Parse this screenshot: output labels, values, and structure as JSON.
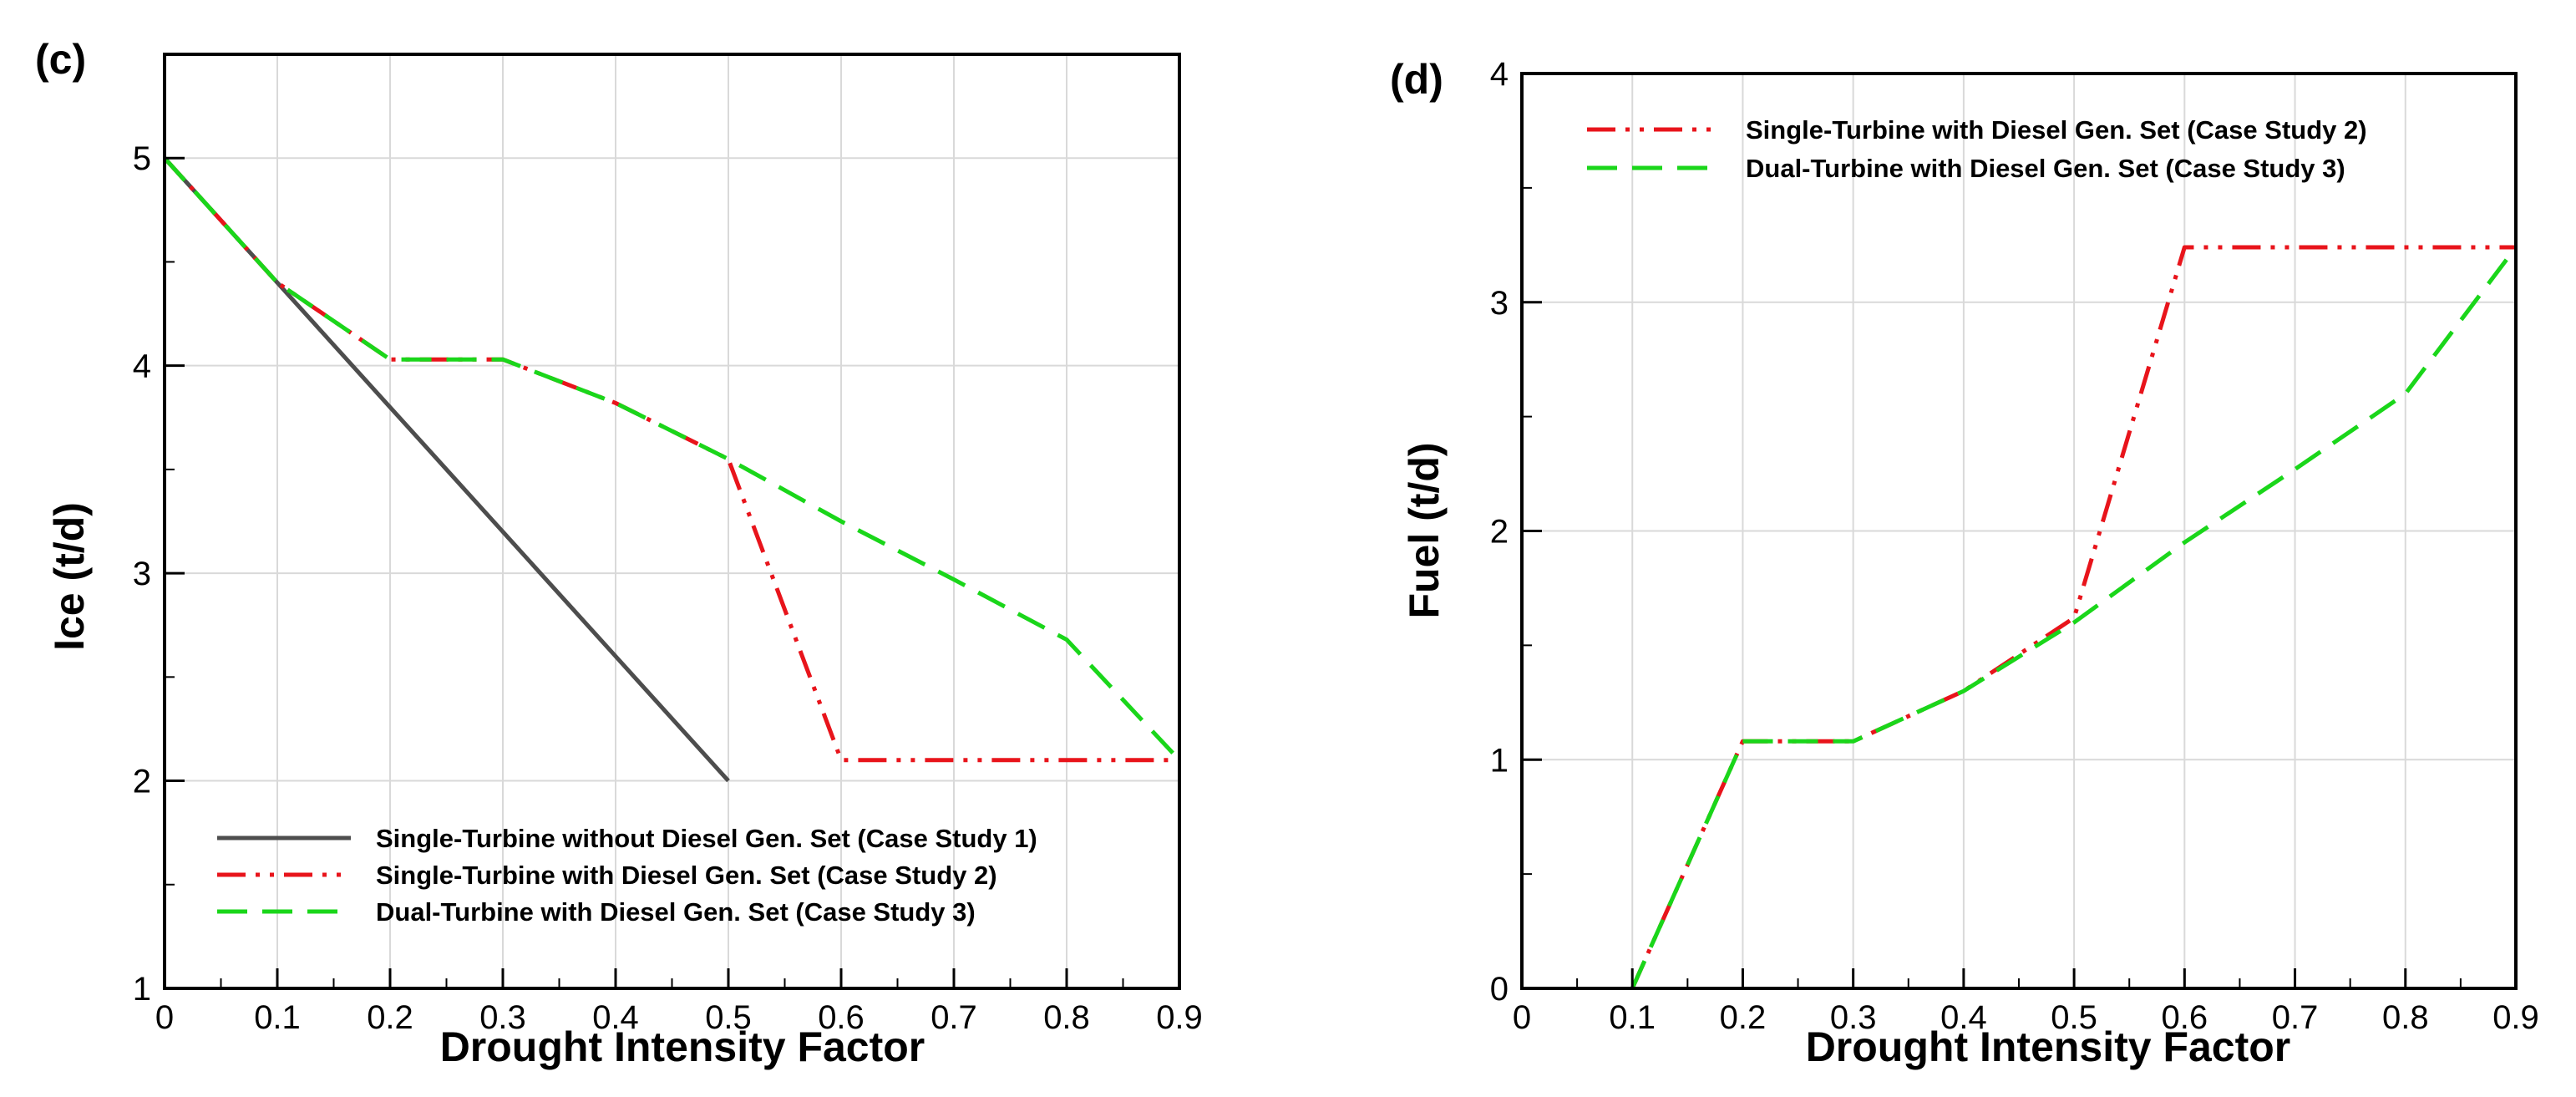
{
  "chart_data": [
    {
      "type": "line",
      "panel_label": "(c)",
      "xlabel": "Drought Intensity Factor",
      "ylabel": "Ice (t/d)",
      "xlim": [
        0,
        0.9
      ],
      "ylim": [
        1,
        5.5
      ],
      "xticks": [
        0,
        0.1,
        0.2,
        0.3,
        0.4,
        0.5,
        0.6,
        0.7,
        0.8,
        0.9
      ],
      "xtick_labels": [
        "0",
        "0.1",
        "0.2",
        "0.3",
        "0.4",
        "0.5",
        "0.6",
        "0.7",
        "0.8",
        "0.9"
      ],
      "yticks": [
        1,
        2,
        3,
        4,
        5
      ],
      "ytick_labels": [
        "1",
        "2",
        "3",
        "4",
        "5"
      ],
      "grid": true,
      "legend_position": "bottom-left",
      "series": [
        {
          "name": "Single-Turbine without Diesel Gen. Set  (Case Study 1)",
          "color": "#4d4d4d",
          "dash": "solid",
          "x": [
            0,
            0.1,
            0.2,
            0.3,
            0.4,
            0.5
          ],
          "y": [
            5.0,
            4.4,
            3.8,
            3.2,
            2.6,
            2.0
          ]
        },
        {
          "name": "Single-Turbine with Diesel Gen. Set  (Case Study 2)",
          "color": "#e8141b",
          "dash": "dashdotdot",
          "x": [
            0,
            0.1,
            0.2,
            0.3,
            0.4,
            0.5,
            0.6,
            0.7,
            0.8,
            0.9
          ],
          "y": [
            5.0,
            4.4,
            4.03,
            4.03,
            3.82,
            3.55,
            2.1,
            2.1,
            2.1,
            2.1
          ]
        },
        {
          "name": "Dual-Turbine with Diesel Gen. Set  (Case Study 3)",
          "color": "#1ad61a",
          "dash": "dashed",
          "x": [
            0,
            0.1,
            0.2,
            0.3,
            0.4,
            0.5,
            0.6,
            0.7,
            0.8,
            0.9
          ],
          "y": [
            5.0,
            4.4,
            4.03,
            4.03,
            3.82,
            3.55,
            3.25,
            2.97,
            2.68,
            2.1
          ]
        }
      ]
    },
    {
      "type": "line",
      "panel_label": "(d)",
      "xlabel": "Drought Intensity Factor",
      "ylabel": "Fuel (t/d)",
      "xlim": [
        0,
        0.9
      ],
      "ylim": [
        0,
        4
      ],
      "xticks": [
        0,
        0.1,
        0.2,
        0.3,
        0.4,
        0.5,
        0.6,
        0.7,
        0.8,
        0.9
      ],
      "xtick_labels": [
        "0",
        "0.1",
        "0.2",
        "0.3",
        "0.4",
        "0.5",
        "0.6",
        "0.7",
        "0.8",
        "0.9"
      ],
      "yticks": [
        0,
        1,
        2,
        3,
        4
      ],
      "ytick_labels": [
        "0",
        "1",
        "2",
        "3",
        "4"
      ],
      "grid": true,
      "legend_position": "top-left",
      "series": [
        {
          "name": "Single-Turbine with Diesel Gen. Set  (Case Study 2)",
          "color": "#e8141b",
          "dash": "dashdotdot",
          "x": [
            0.1,
            0.2,
            0.3,
            0.4,
            0.5,
            0.6,
            0.7,
            0.8,
            0.9
          ],
          "y": [
            0,
            1.08,
            1.08,
            1.3,
            1.62,
            3.24,
            3.24,
            3.24,
            3.24
          ]
        },
        {
          "name": "Dual-Turbine with Diesel Gen. Set  (Case Study 3)",
          "color": "#1ad61a",
          "dash": "dashed",
          "x": [
            0.1,
            0.2,
            0.3,
            0.4,
            0.5,
            0.6,
            0.7,
            0.8,
            0.9
          ],
          "y": [
            0,
            1.08,
            1.08,
            1.3,
            1.6,
            1.95,
            2.27,
            2.6,
            3.24
          ]
        }
      ]
    }
  ]
}
